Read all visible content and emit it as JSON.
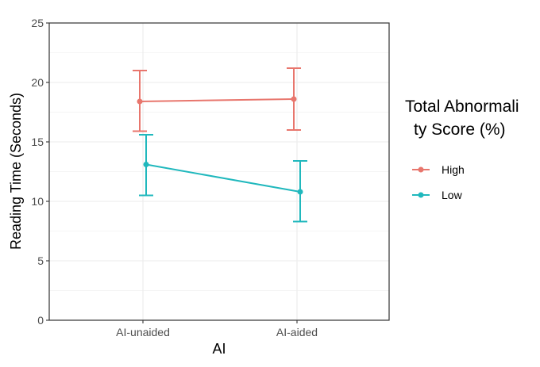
{
  "chart_data": {
    "type": "line",
    "xlabel": "AI",
    "ylabel": "Reading Time (Seconds)",
    "categories": [
      "AI-unaided",
      "AI-aided"
    ],
    "ylim": [
      0,
      25
    ],
    "yticks": [
      "0",
      "5",
      "10",
      "15",
      "20",
      "25"
    ],
    "grid": true,
    "legend": {
      "title_line1": "Total Abnormali",
      "title_line2": "ty Score (%)",
      "placement": "right"
    },
    "series": [
      {
        "name": "High",
        "color": "#e8766d",
        "values": [
          18.4,
          18.6
        ],
        "error_low": [
          15.9,
          16.0
        ],
        "error_high": [
          21.0,
          21.2
        ]
      },
      {
        "name": "Low",
        "color": "#20b8bd",
        "values": [
          13.1,
          10.8
        ],
        "error_low": [
          10.5,
          8.3
        ],
        "error_high": [
          15.6,
          13.4
        ]
      }
    ]
  }
}
